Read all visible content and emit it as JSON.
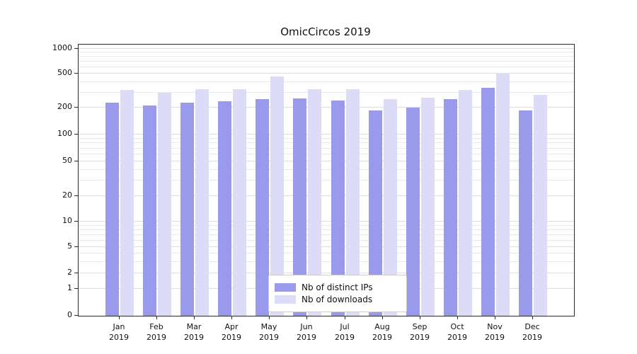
{
  "chart_data": {
    "type": "bar",
    "title": "OmicCircos 2019",
    "categories": [
      "Jan",
      "Feb",
      "Mar",
      "Apr",
      "May",
      "Jun",
      "Jul",
      "Aug",
      "Sep",
      "Oct",
      "Nov",
      "Dec"
    ],
    "category_year": "2019",
    "series": [
      {
        "name": "Nb of distinct IPs",
        "color": "#9a9aed",
        "values": [
          230,
          210,
          230,
          235,
          250,
          255,
          240,
          185,
          198,
          250,
          340,
          185
        ]
      },
      {
        "name": "Nb of downloads",
        "color": "#dcdcf8",
        "values": [
          320,
          300,
          330,
          325,
          460,
          330,
          330,
          250,
          260,
          320,
          510,
          280
        ]
      }
    ],
    "y_axis": {
      "scale": "log",
      "ticks": [
        0,
        1,
        2,
        5,
        10,
        20,
        50,
        100,
        200,
        500,
        1000
      ]
    },
    "grid": "on",
    "legend_position": "bottom-center"
  }
}
